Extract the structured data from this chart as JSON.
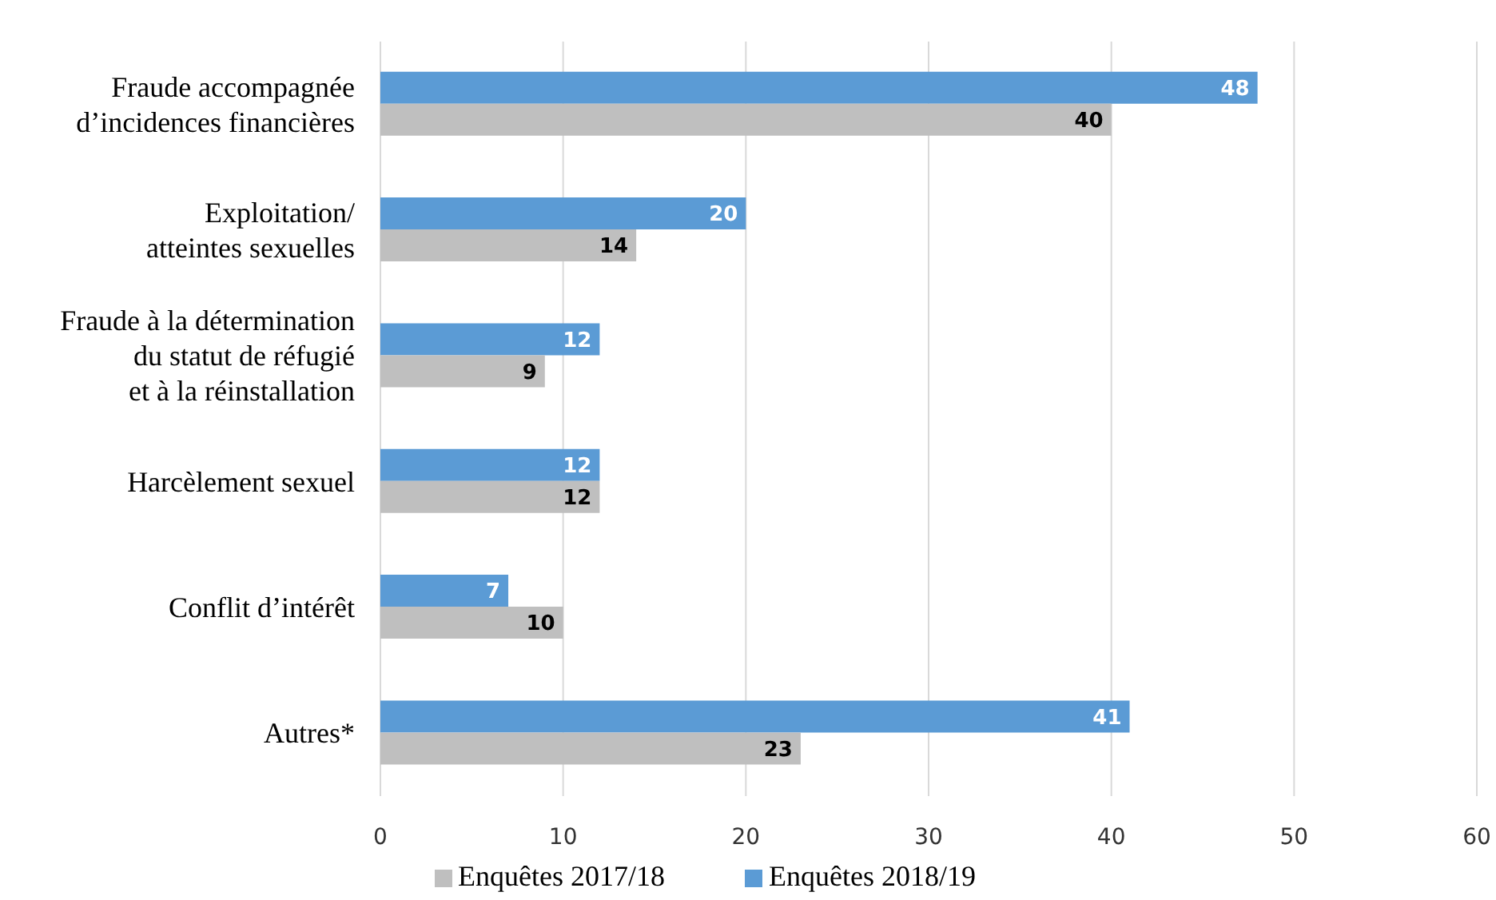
{
  "chart_data": {
    "type": "bar",
    "orientation": "horizontal",
    "categories": [
      "Fraude accompagnée\nd’incidences financières",
      "Exploitation/\natteintes sexuelles",
      "Fraude à la détermination\ndu statut de réfugié\net à la réinstallation",
      "Harcèlement sexuel",
      "Conflit d’intérêt",
      "Autres*"
    ],
    "series": [
      {
        "name": "Enquêtes 2018/19",
        "color": "#5b9bd5",
        "values": [
          48,
          20,
          12,
          12,
          7,
          41
        ]
      },
      {
        "name": "Enquêtes 2017/18",
        "color": "#bfbfbf",
        "values": [
          40,
          14,
          9,
          12,
          10,
          23
        ]
      }
    ],
    "xlim": [
      0,
      60
    ],
    "xticks": [
      0,
      10,
      20,
      30,
      40,
      50,
      60
    ],
    "grid": "x",
    "legend": "bottom",
    "data_labels": true
  }
}
